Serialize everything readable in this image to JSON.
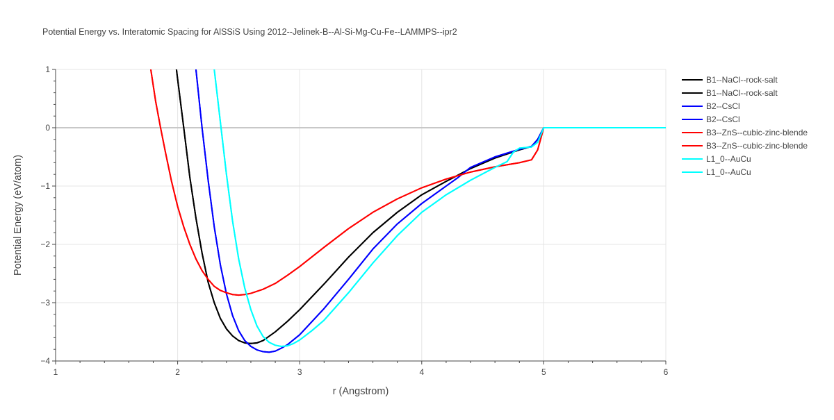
{
  "chart_data": {
    "type": "line",
    "title": "Potential Energy vs. Interatomic Spacing for AlSSiS Using 2012--Jelinek-B--Al-Si-Mg-Cu-Fe--LAMMPS--ipr2",
    "xlabel": "r (Angstrom)",
    "ylabel": "Potential Energy (eV/atom)",
    "xlim": [
      1,
      6
    ],
    "ylim": [
      -4,
      1
    ],
    "grid": true,
    "legend_position": "right",
    "x_ticks": [
      1,
      2,
      3,
      4,
      5,
      6
    ],
    "x_tick_labels": [
      "1",
      "2",
      "3",
      "4",
      "5",
      "6"
    ],
    "y_ticks": [
      1,
      0,
      -1,
      -2,
      -3,
      -4
    ],
    "y_tick_labels": [
      "1",
      "0",
      "−1",
      "−2",
      "−3",
      "−4"
    ],
    "series": [
      {
        "name": "B1--NaCl--rock-salt",
        "color": "#000000",
        "x": [
          1.99,
          2.05,
          2.1,
          2.15,
          2.2,
          2.25,
          2.3,
          2.35,
          2.4,
          2.45,
          2.5,
          2.55,
          2.6,
          2.65,
          2.7,
          2.8,
          2.9,
          3.0,
          3.2,
          3.4,
          3.6,
          3.8,
          4.0,
          4.2,
          4.4,
          4.6,
          4.8,
          4.9,
          4.95,
          5.0,
          6.0
        ],
        "y": [
          1.0,
          0.0,
          -0.85,
          -1.55,
          -2.15,
          -2.65,
          -3.0,
          -3.27,
          -3.45,
          -3.57,
          -3.65,
          -3.69,
          -3.7,
          -3.69,
          -3.65,
          -3.5,
          -3.32,
          -3.12,
          -2.68,
          -2.22,
          -1.8,
          -1.45,
          -1.15,
          -0.92,
          -0.7,
          -0.52,
          -0.38,
          -0.32,
          -0.2,
          0.0,
          0.0
        ]
      },
      {
        "name": "B1--NaCl--rock-salt",
        "color": "#000000",
        "x": [
          1.99,
          2.05,
          2.1,
          2.15,
          2.2,
          2.25,
          2.3,
          2.35,
          2.4,
          2.45,
          2.5,
          2.55,
          2.6,
          2.65,
          2.7,
          2.8,
          2.9,
          3.0,
          3.2,
          3.4,
          3.6,
          3.8,
          4.0,
          4.2,
          4.4,
          4.6,
          4.8,
          4.9,
          4.95,
          5.0,
          6.0
        ],
        "y": [
          1.0,
          0.0,
          -0.85,
          -1.55,
          -2.15,
          -2.65,
          -3.0,
          -3.27,
          -3.45,
          -3.57,
          -3.65,
          -3.69,
          -3.7,
          -3.69,
          -3.65,
          -3.5,
          -3.32,
          -3.12,
          -2.68,
          -2.22,
          -1.8,
          -1.45,
          -1.15,
          -0.92,
          -0.7,
          -0.52,
          -0.38,
          -0.32,
          -0.2,
          0.0,
          0.0
        ]
      },
      {
        "name": "B2--CsCl",
        "color": "#0000ff",
        "x": [
          2.15,
          2.2,
          2.25,
          2.3,
          2.35,
          2.4,
          2.45,
          2.5,
          2.55,
          2.6,
          2.65,
          2.7,
          2.75,
          2.8,
          2.85,
          2.9,
          3.0,
          3.2,
          3.4,
          3.6,
          3.8,
          4.0,
          4.2,
          4.3,
          4.4,
          4.6,
          4.8,
          4.9,
          4.95,
          5.0,
          6.0
        ],
        "y": [
          1.0,
          0.0,
          -0.9,
          -1.7,
          -2.35,
          -2.85,
          -3.22,
          -3.48,
          -3.65,
          -3.75,
          -3.81,
          -3.84,
          -3.85,
          -3.83,
          -3.78,
          -3.72,
          -3.55,
          -3.1,
          -2.6,
          -2.08,
          -1.65,
          -1.3,
          -1.0,
          -0.85,
          -0.68,
          -0.5,
          -0.37,
          -0.32,
          -0.2,
          0.0,
          0.0
        ]
      },
      {
        "name": "B2--CsCl",
        "color": "#0000ff",
        "x": [
          2.15,
          2.2,
          2.25,
          2.3,
          2.35,
          2.4,
          2.45,
          2.5,
          2.55,
          2.6,
          2.65,
          2.7,
          2.75,
          2.8,
          2.85,
          2.9,
          3.0,
          3.2,
          3.4,
          3.6,
          3.8,
          4.0,
          4.2,
          4.3,
          4.4,
          4.6,
          4.8,
          4.9,
          4.95,
          5.0,
          6.0
        ],
        "y": [
          1.0,
          0.0,
          -0.9,
          -1.7,
          -2.35,
          -2.85,
          -3.22,
          -3.48,
          -3.65,
          -3.75,
          -3.81,
          -3.84,
          -3.85,
          -3.83,
          -3.78,
          -3.72,
          -3.55,
          -3.1,
          -2.6,
          -2.08,
          -1.65,
          -1.3,
          -1.0,
          -0.85,
          -0.68,
          -0.5,
          -0.37,
          -0.32,
          -0.2,
          0.0,
          0.0
        ]
      },
      {
        "name": "B3--ZnS--cubic-zinc-blende",
        "color": "#ff0000",
        "x": [
          1.78,
          1.82,
          1.86,
          1.9,
          1.95,
          2.0,
          2.05,
          2.1,
          2.15,
          2.2,
          2.25,
          2.3,
          2.35,
          2.4,
          2.45,
          2.5,
          2.55,
          2.6,
          2.7,
          2.8,
          2.9,
          3.0,
          3.2,
          3.4,
          3.6,
          3.8,
          4.0,
          4.2,
          4.4,
          4.6,
          4.8,
          4.9,
          4.95,
          5.0,
          6.0
        ],
        "y": [
          1.0,
          0.45,
          0.0,
          -0.42,
          -0.92,
          -1.35,
          -1.7,
          -2.0,
          -2.25,
          -2.45,
          -2.6,
          -2.72,
          -2.79,
          -2.83,
          -2.86,
          -2.87,
          -2.86,
          -2.84,
          -2.77,
          -2.67,
          -2.53,
          -2.38,
          -2.05,
          -1.73,
          -1.45,
          -1.22,
          -1.03,
          -0.88,
          -0.76,
          -0.67,
          -0.6,
          -0.55,
          -0.38,
          0.0,
          0.0
        ]
      },
      {
        "name": "B3--ZnS--cubic-zinc-blende",
        "color": "#ff0000",
        "x": [
          1.78,
          1.82,
          1.86,
          1.9,
          1.95,
          2.0,
          2.05,
          2.1,
          2.15,
          2.2,
          2.25,
          2.3,
          2.35,
          2.4,
          2.45,
          2.5,
          2.55,
          2.6,
          2.7,
          2.8,
          2.9,
          3.0,
          3.2,
          3.4,
          3.6,
          3.8,
          4.0,
          4.2,
          4.4,
          4.6,
          4.8,
          4.9,
          4.95,
          5.0,
          6.0
        ],
        "y": [
          1.0,
          0.45,
          0.0,
          -0.42,
          -0.92,
          -1.35,
          -1.7,
          -2.0,
          -2.25,
          -2.45,
          -2.6,
          -2.72,
          -2.79,
          -2.83,
          -2.86,
          -2.87,
          -2.86,
          -2.84,
          -2.77,
          -2.67,
          -2.53,
          -2.38,
          -2.05,
          -1.73,
          -1.45,
          -1.22,
          -1.03,
          -0.88,
          -0.76,
          -0.67,
          -0.6,
          -0.55,
          -0.38,
          0.0,
          0.0
        ]
      },
      {
        "name": "L1_0--AuCu",
        "color": "#00ffff",
        "x": [
          2.3,
          2.35,
          2.4,
          2.45,
          2.5,
          2.55,
          2.6,
          2.65,
          2.7,
          2.75,
          2.8,
          2.85,
          2.9,
          2.95,
          3.0,
          3.1,
          3.2,
          3.4,
          3.6,
          3.8,
          4.0,
          4.2,
          4.4,
          4.6,
          4.7,
          4.75,
          4.8,
          4.9,
          4.95,
          5.0,
          6.0
        ],
        "y": [
          1.0,
          0.1,
          -0.8,
          -1.6,
          -2.25,
          -2.75,
          -3.12,
          -3.4,
          -3.58,
          -3.68,
          -3.73,
          -3.75,
          -3.74,
          -3.7,
          -3.64,
          -3.48,
          -3.3,
          -2.83,
          -2.32,
          -1.85,
          -1.45,
          -1.15,
          -0.9,
          -0.68,
          -0.58,
          -0.42,
          -0.35,
          -0.33,
          -0.25,
          0.0,
          0.0
        ]
      },
      {
        "name": "L1_0--AuCu",
        "color": "#00ffff",
        "x": [
          2.3,
          2.35,
          2.4,
          2.45,
          2.5,
          2.55,
          2.6,
          2.65,
          2.7,
          2.75,
          2.8,
          2.85,
          2.9,
          2.95,
          3.0,
          3.1,
          3.2,
          3.4,
          3.6,
          3.8,
          4.0,
          4.2,
          4.4,
          4.6,
          4.7,
          4.75,
          4.8,
          4.9,
          4.95,
          5.0,
          6.0
        ],
        "y": [
          1.0,
          0.1,
          -0.8,
          -1.6,
          -2.25,
          -2.75,
          -3.12,
          -3.4,
          -3.58,
          -3.68,
          -3.73,
          -3.75,
          -3.74,
          -3.7,
          -3.64,
          -3.48,
          -3.3,
          -2.83,
          -2.32,
          -1.85,
          -1.45,
          -1.15,
          -0.9,
          -0.68,
          -0.58,
          -0.42,
          -0.35,
          -0.33,
          -0.25,
          0.0,
          0.0
        ]
      }
    ]
  }
}
